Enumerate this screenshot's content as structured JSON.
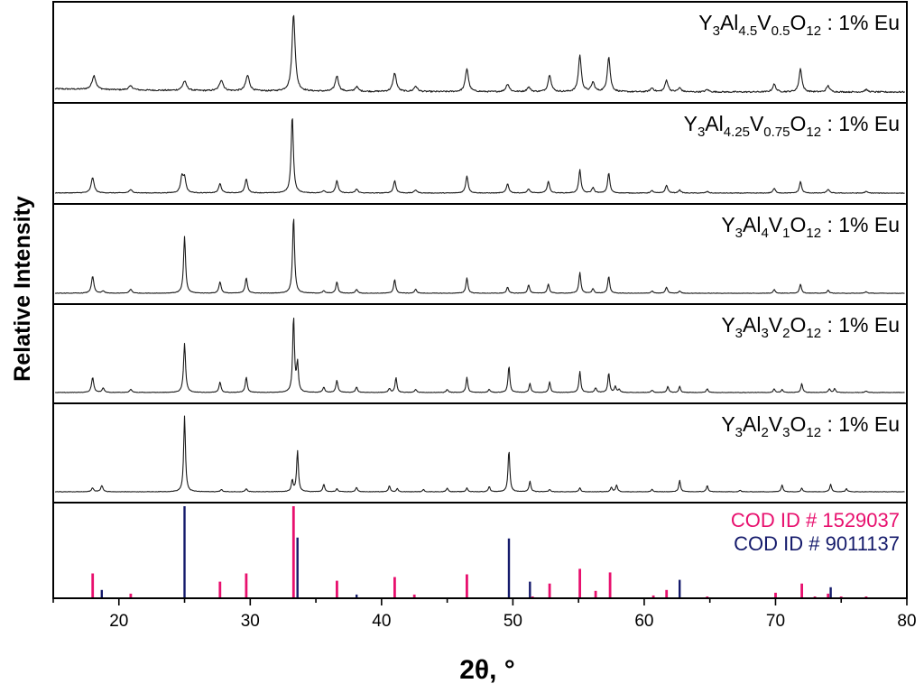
{
  "chart_data": {
    "type": "line",
    "xlabel": "2θ, °",
    "ylabel": "Relative Intensity",
    "xlim": [
      15,
      80
    ],
    "x_ticks": [
      20,
      30,
      40,
      50,
      60,
      70,
      80
    ],
    "grid": false,
    "panels": [
      {
        "label": {
          "base": "Y",
          "s1": "3",
          "m1": "Al",
          "s2": "4.5",
          "m2": "V",
          "s3": "0.5",
          "m3": "O",
          "s4": "12",
          "tail": " : 1% Eu"
        },
        "baseline_slope": 0.35,
        "noise": 0.018,
        "peaks": [
          [
            18.1,
            0.18,
            0.17
          ],
          [
            20.9,
            0.05,
            0.2
          ],
          [
            25.0,
            0.12,
            0.18
          ],
          [
            27.8,
            0.14,
            0.17
          ],
          [
            29.8,
            0.2,
            0.17
          ],
          [
            33.3,
            1.0,
            0.14
          ],
          [
            36.6,
            0.2,
            0.15
          ],
          [
            38.1,
            0.06,
            0.15
          ],
          [
            41.0,
            0.24,
            0.15
          ],
          [
            42.6,
            0.07,
            0.15
          ],
          [
            46.5,
            0.3,
            0.14
          ],
          [
            49.6,
            0.1,
            0.15
          ],
          [
            51.2,
            0.06,
            0.15
          ],
          [
            52.8,
            0.22,
            0.14
          ],
          [
            55.1,
            0.47,
            0.13
          ],
          [
            56.1,
            0.12,
            0.14
          ],
          [
            57.3,
            0.45,
            0.13
          ],
          [
            60.6,
            0.05,
            0.15
          ],
          [
            61.7,
            0.15,
            0.14
          ],
          [
            62.7,
            0.05,
            0.15
          ],
          [
            64.8,
            0.03,
            0.15
          ],
          [
            69.9,
            0.1,
            0.14
          ],
          [
            71.9,
            0.3,
            0.13
          ],
          [
            74.0,
            0.08,
            0.14
          ],
          [
            76.9,
            0.03,
            0.15
          ]
        ]
      },
      {
        "label": {
          "base": "Y",
          "s1": "3",
          "m1": "Al",
          "s2": "4.25",
          "m2": "V",
          "s3": "0.75",
          "m3": "O",
          "s4": "12",
          "tail": " : 1% Eu"
        },
        "baseline_slope": 0.02,
        "noise": 0.008,
        "peaks": [
          [
            18.0,
            0.2,
            0.13
          ],
          [
            20.9,
            0.04,
            0.15
          ],
          [
            24.8,
            0.2,
            0.12
          ],
          [
            25.0,
            0.18,
            0.12
          ],
          [
            27.7,
            0.12,
            0.12
          ],
          [
            29.7,
            0.18,
            0.12
          ],
          [
            33.2,
            1.0,
            0.1
          ],
          [
            35.6,
            0.03,
            0.12
          ],
          [
            36.6,
            0.16,
            0.11
          ],
          [
            38.1,
            0.05,
            0.12
          ],
          [
            41.0,
            0.16,
            0.11
          ],
          [
            42.6,
            0.04,
            0.12
          ],
          [
            46.5,
            0.22,
            0.11
          ],
          [
            49.6,
            0.12,
            0.11
          ],
          [
            51.2,
            0.05,
            0.12
          ],
          [
            52.7,
            0.15,
            0.11
          ],
          [
            55.1,
            0.3,
            0.1
          ],
          [
            56.1,
            0.07,
            0.11
          ],
          [
            57.3,
            0.26,
            0.1
          ],
          [
            60.6,
            0.03,
            0.12
          ],
          [
            61.7,
            0.1,
            0.11
          ],
          [
            62.7,
            0.04,
            0.11
          ],
          [
            64.8,
            0.02,
            0.12
          ],
          [
            69.9,
            0.06,
            0.11
          ],
          [
            71.9,
            0.15,
            0.1
          ],
          [
            74.0,
            0.05,
            0.11
          ],
          [
            76.9,
            0.02,
            0.12
          ]
        ]
      },
      {
        "label": {
          "base": "Y",
          "s1": "3",
          "m1": "Al",
          "s2": "4",
          "m2": "V",
          "s3": "1",
          "m3": "O",
          "s4": "12",
          "tail": " : 1% Eu"
        },
        "baseline_slope": 0.0,
        "noise": 0.006,
        "peaks": [
          [
            18.0,
            0.22,
            0.11
          ],
          [
            18.8,
            0.03,
            0.11
          ],
          [
            20.9,
            0.05,
            0.12
          ],
          [
            25.0,
            0.74,
            0.09
          ],
          [
            27.7,
            0.15,
            0.1
          ],
          [
            29.7,
            0.2,
            0.1
          ],
          [
            33.3,
            1.0,
            0.09
          ],
          [
            35.6,
            0.03,
            0.1
          ],
          [
            36.6,
            0.15,
            0.09
          ],
          [
            38.1,
            0.05,
            0.1
          ],
          [
            41.0,
            0.18,
            0.09
          ],
          [
            42.6,
            0.05,
            0.1
          ],
          [
            46.5,
            0.2,
            0.09
          ],
          [
            49.6,
            0.08,
            0.09
          ],
          [
            51.2,
            0.11,
            0.09
          ],
          [
            52.7,
            0.12,
            0.09
          ],
          [
            55.1,
            0.27,
            0.09
          ],
          [
            56.1,
            0.06,
            0.09
          ],
          [
            57.3,
            0.22,
            0.09
          ],
          [
            60.6,
            0.03,
            0.1
          ],
          [
            61.7,
            0.08,
            0.09
          ],
          [
            62.7,
            0.03,
            0.09
          ],
          [
            69.9,
            0.05,
            0.09
          ],
          [
            71.9,
            0.12,
            0.09
          ],
          [
            74.0,
            0.04,
            0.09
          ],
          [
            76.9,
            0.02,
            0.1
          ]
        ]
      },
      {
        "label": {
          "base": "Y",
          "s1": "3",
          "m1": "Al",
          "s2": "3",
          "m2": "V",
          "s3": "2",
          "m3": "O",
          "s4": "12",
          "tail": " : 1% Eu"
        },
        "baseline_slope": 0.0,
        "noise": 0.006,
        "peaks": [
          [
            18.0,
            0.2,
            0.1
          ],
          [
            18.8,
            0.06,
            0.1
          ],
          [
            20.9,
            0.04,
            0.11
          ],
          [
            25.0,
            0.65,
            0.09
          ],
          [
            27.7,
            0.14,
            0.09
          ],
          [
            29.7,
            0.2,
            0.09
          ],
          [
            33.3,
            1.0,
            0.08
          ],
          [
            33.6,
            0.38,
            0.08
          ],
          [
            35.6,
            0.07,
            0.09
          ],
          [
            36.6,
            0.16,
            0.09
          ],
          [
            38.1,
            0.07,
            0.09
          ],
          [
            40.6,
            0.05,
            0.09
          ],
          [
            41.1,
            0.2,
            0.08
          ],
          [
            42.6,
            0.04,
            0.09
          ],
          [
            45.0,
            0.04,
            0.09
          ],
          [
            46.5,
            0.2,
            0.08
          ],
          [
            48.2,
            0.04,
            0.09
          ],
          [
            49.7,
            0.35,
            0.08
          ],
          [
            51.3,
            0.12,
            0.08
          ],
          [
            52.8,
            0.14,
            0.08
          ],
          [
            55.1,
            0.28,
            0.08
          ],
          [
            56.3,
            0.06,
            0.09
          ],
          [
            57.3,
            0.26,
            0.08
          ],
          [
            57.8,
            0.08,
            0.08
          ],
          [
            58.1,
            0.04,
            0.08
          ],
          [
            60.6,
            0.03,
            0.09
          ],
          [
            61.8,
            0.08,
            0.08
          ],
          [
            62.7,
            0.08,
            0.08
          ],
          [
            64.8,
            0.05,
            0.08
          ],
          [
            69.9,
            0.05,
            0.08
          ],
          [
            70.5,
            0.04,
            0.08
          ],
          [
            72.0,
            0.12,
            0.08
          ],
          [
            74.1,
            0.05,
            0.08
          ],
          [
            74.5,
            0.05,
            0.08
          ],
          [
            76.9,
            0.02,
            0.09
          ]
        ]
      },
      {
        "label": {
          "base": "Y",
          "s1": "3",
          "m1": "Al",
          "s2": "2",
          "m2": "V",
          "s3": "3",
          "m3": "O",
          "s4": "12",
          "tail": " : 1% Eu"
        },
        "baseline_slope": 0.0,
        "noise": 0.006,
        "peaks": [
          [
            18.0,
            0.05,
            0.1
          ],
          [
            18.7,
            0.08,
            0.1
          ],
          [
            25.0,
            1.0,
            0.08
          ],
          [
            27.8,
            0.03,
            0.09
          ],
          [
            29.7,
            0.04,
            0.09
          ],
          [
            33.2,
            0.15,
            0.08
          ],
          [
            33.6,
            0.54,
            0.08
          ],
          [
            35.6,
            0.1,
            0.08
          ],
          [
            36.6,
            0.04,
            0.08
          ],
          [
            38.1,
            0.06,
            0.08
          ],
          [
            40.6,
            0.08,
            0.08
          ],
          [
            41.2,
            0.04,
            0.08
          ],
          [
            43.2,
            0.03,
            0.08
          ],
          [
            45.0,
            0.05,
            0.08
          ],
          [
            46.5,
            0.05,
            0.08
          ],
          [
            48.2,
            0.07,
            0.08
          ],
          [
            49.7,
            0.55,
            0.08
          ],
          [
            51.3,
            0.14,
            0.08
          ],
          [
            52.8,
            0.03,
            0.08
          ],
          [
            55.1,
            0.05,
            0.08
          ],
          [
            57.5,
            0.06,
            0.08
          ],
          [
            57.9,
            0.09,
            0.08
          ],
          [
            60.6,
            0.03,
            0.08
          ],
          [
            62.7,
            0.15,
            0.08
          ],
          [
            64.8,
            0.08,
            0.08
          ],
          [
            67.3,
            0.02,
            0.08
          ],
          [
            70.5,
            0.09,
            0.08
          ],
          [
            72.0,
            0.05,
            0.08
          ],
          [
            74.2,
            0.1,
            0.08
          ],
          [
            75.4,
            0.04,
            0.08
          ]
        ]
      }
    ],
    "references": {
      "series": [
        {
          "name": "COD ID # 1529037",
          "color": "#e8106e",
          "lines": [
            [
              18.0,
              0.27
            ],
            [
              20.9,
              0.05
            ],
            [
              27.7,
              0.18
            ],
            [
              29.7,
              0.27
            ],
            [
              33.3,
              1.0
            ],
            [
              36.6,
              0.19
            ],
            [
              41.0,
              0.23
            ],
            [
              42.5,
              0.04
            ],
            [
              46.5,
              0.26
            ],
            [
              51.5,
              0.02
            ],
            [
              52.8,
              0.16
            ],
            [
              55.1,
              0.32
            ],
            [
              56.3,
              0.08
            ],
            [
              57.4,
              0.28
            ],
            [
              60.7,
              0.03
            ],
            [
              61.7,
              0.09
            ],
            [
              64.8,
              0.02
            ],
            [
              65.9,
              0.01
            ],
            [
              70.0,
              0.06
            ],
            [
              72.0,
              0.16
            ],
            [
              73.0,
              0.02
            ],
            [
              74.0,
              0.05
            ],
            [
              75.0,
              0.02
            ],
            [
              76.9,
              0.02
            ]
          ]
        },
        {
          "name": "COD ID # 9011137",
          "color": "#141a6b",
          "lines": [
            [
              18.7,
              0.09
            ],
            [
              25.0,
              1.0
            ],
            [
              33.6,
              0.66
            ],
            [
              38.1,
              0.04
            ],
            [
              49.7,
              0.65
            ],
            [
              51.3,
              0.18
            ],
            [
              62.7,
              0.2
            ],
            [
              74.2,
              0.12
            ]
          ]
        }
      ]
    }
  }
}
